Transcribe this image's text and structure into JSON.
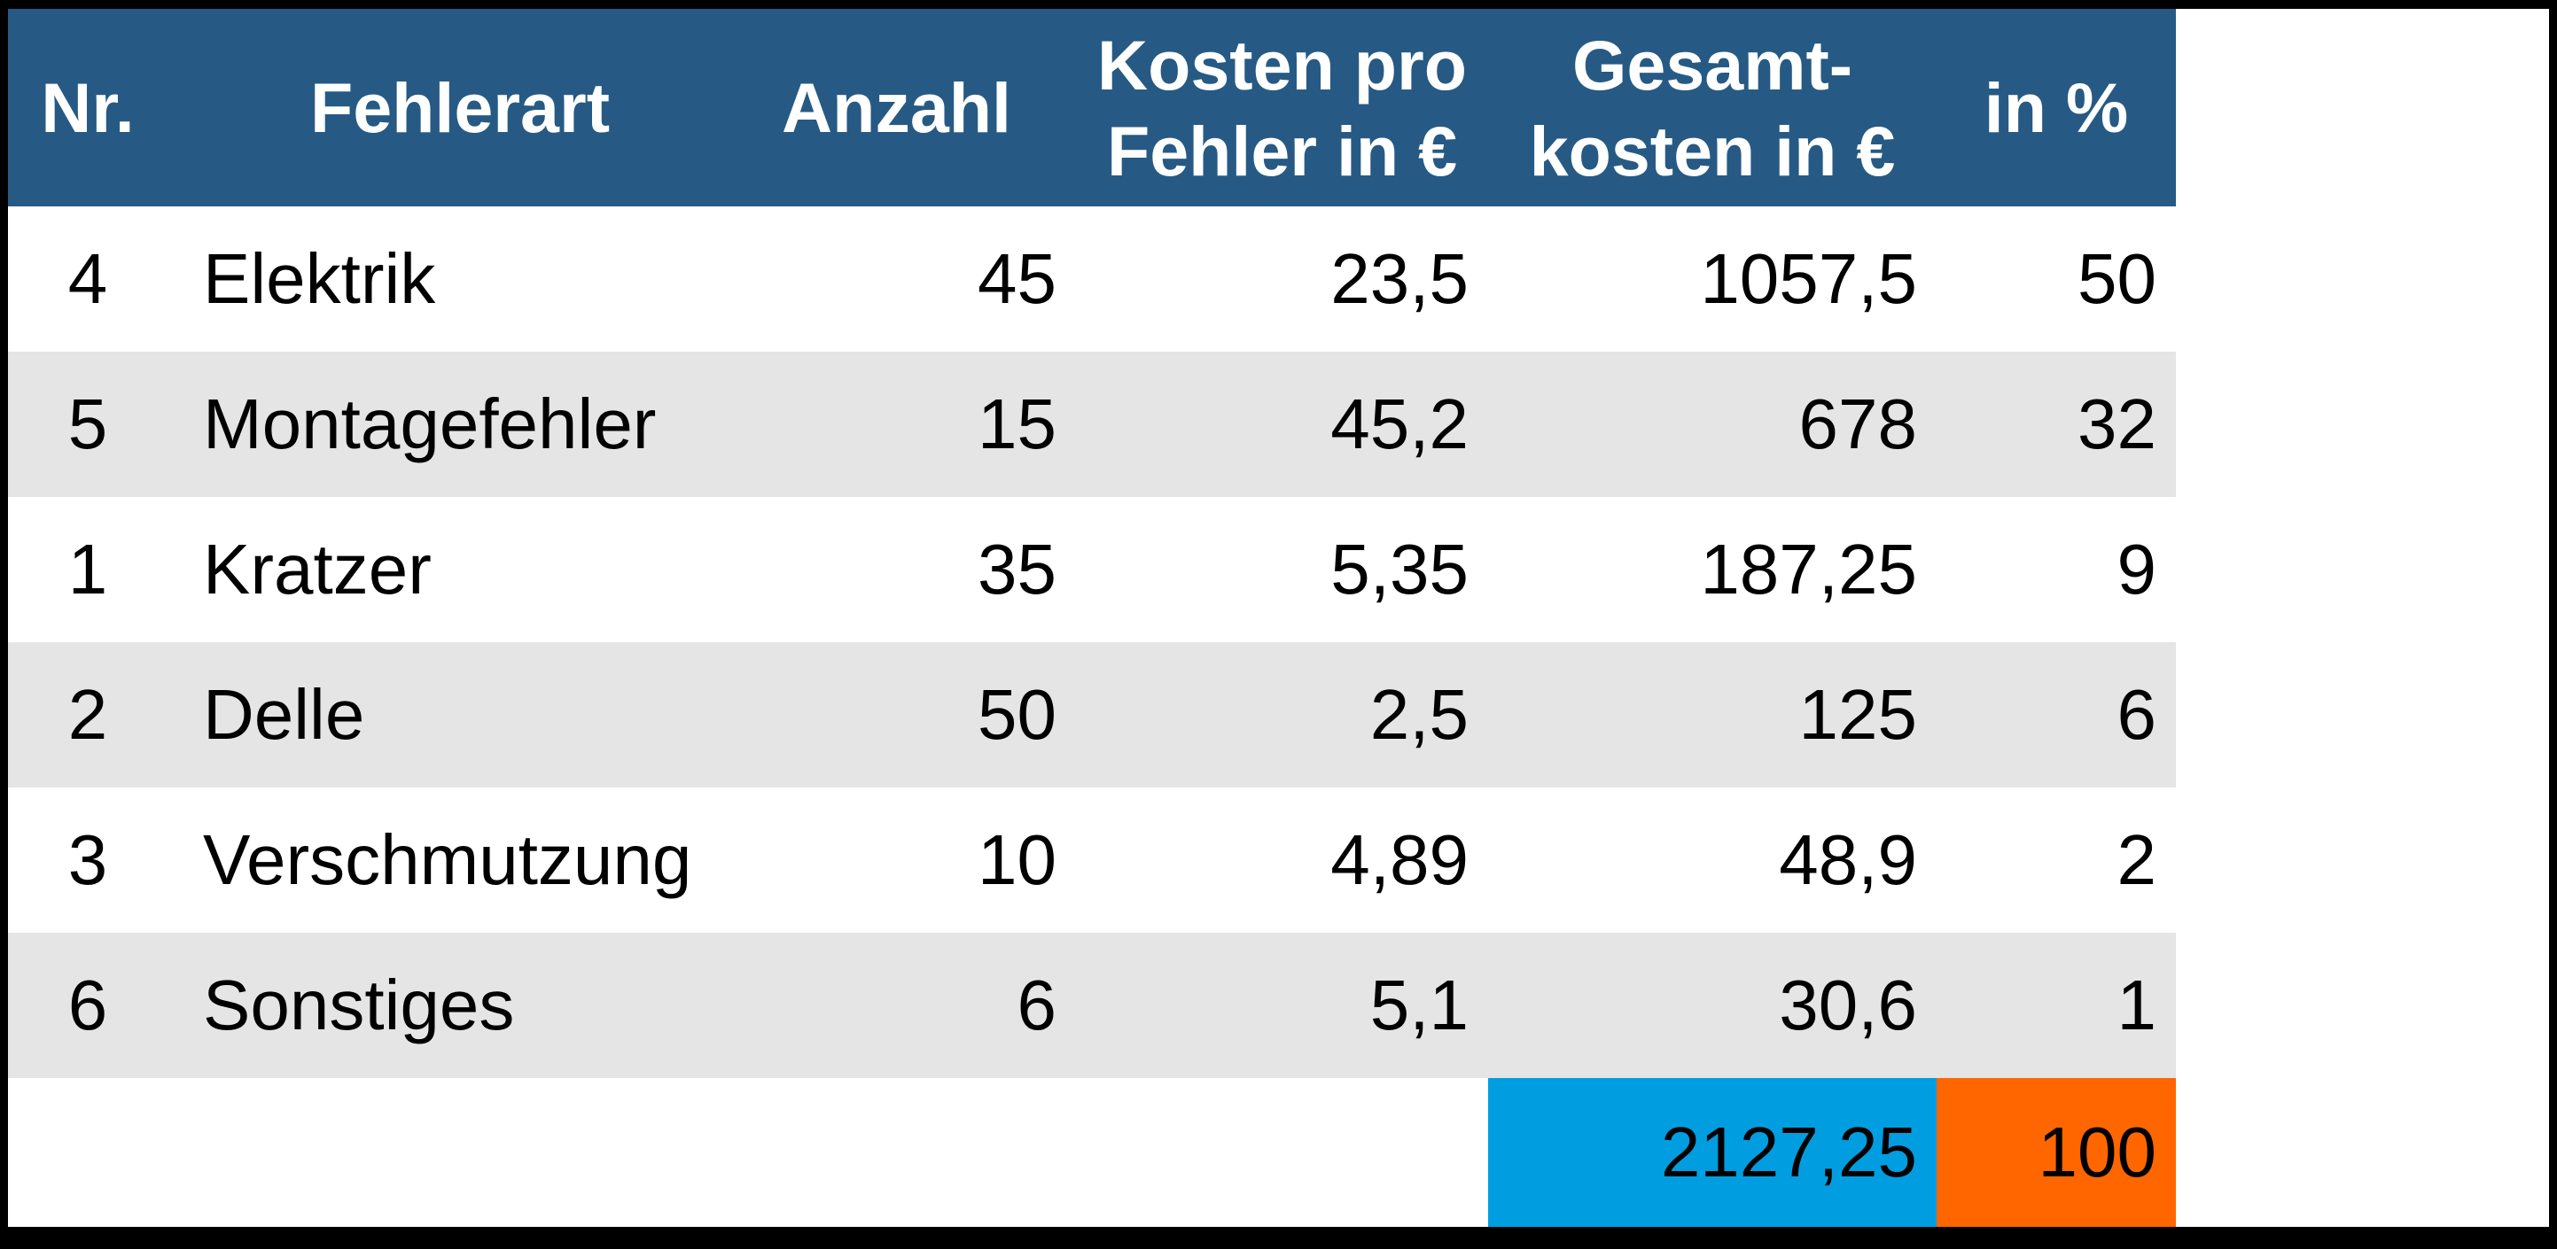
{
  "table": {
    "columns": [
      {
        "key": "nr",
        "lines": [
          "Nr."
        ]
      },
      {
        "key": "fehlerart",
        "lines": [
          "Fehlerart"
        ]
      },
      {
        "key": "anzahl",
        "lines": [
          "Anzahl"
        ]
      },
      {
        "key": "kosten_pro_fehler",
        "lines": [
          "Kosten pro",
          "Fehler in €"
        ]
      },
      {
        "key": "gesamtkosten",
        "lines": [
          "Gesamt-",
          "kosten in €"
        ]
      },
      {
        "key": "prozent",
        "lines": [
          "in %"
        ]
      }
    ],
    "rows": [
      {
        "nr": "4",
        "fehlerart": "Elektrik",
        "anzahl": "45",
        "kosten_pro_fehler": "23,5",
        "gesamtkosten": "1057,5",
        "prozent": "50"
      },
      {
        "nr": "5",
        "fehlerart": "Montagefehler",
        "anzahl": "15",
        "kosten_pro_fehler": "45,2",
        "gesamtkosten": "678",
        "prozent": "32"
      },
      {
        "nr": "1",
        "fehlerart": "Kratzer",
        "anzahl": "35",
        "kosten_pro_fehler": "5,35",
        "gesamtkosten": "187,25",
        "prozent": "9"
      },
      {
        "nr": "2",
        "fehlerart": "Delle",
        "anzahl": "50",
        "kosten_pro_fehler": "2,5",
        "gesamtkosten": "125",
        "prozent": "6"
      },
      {
        "nr": "3",
        "fehlerart": "Verschmutzung",
        "anzahl": "10",
        "kosten_pro_fehler": "4,89",
        "gesamtkosten": "48,9",
        "prozent": "2"
      },
      {
        "nr": "6",
        "fehlerart": "Sonstiges",
        "anzahl": "6",
        "kosten_pro_fehler": "5,1",
        "gesamtkosten": "30,6",
        "prozent": "1"
      }
    ],
    "footer": {
      "gesamtkosten": "2127,25",
      "prozent": "100"
    }
  },
  "colors": {
    "header_bg": "#265A84",
    "header_text": "#FFFFFF",
    "row_bg": "#FFFFFF",
    "row_alt_bg": "#E5E5E5",
    "body_text": "#000000",
    "total_cell_bg": "#009EE0",
    "percent_cell_bg": "#FF6600",
    "frame_bg": "#000000"
  }
}
